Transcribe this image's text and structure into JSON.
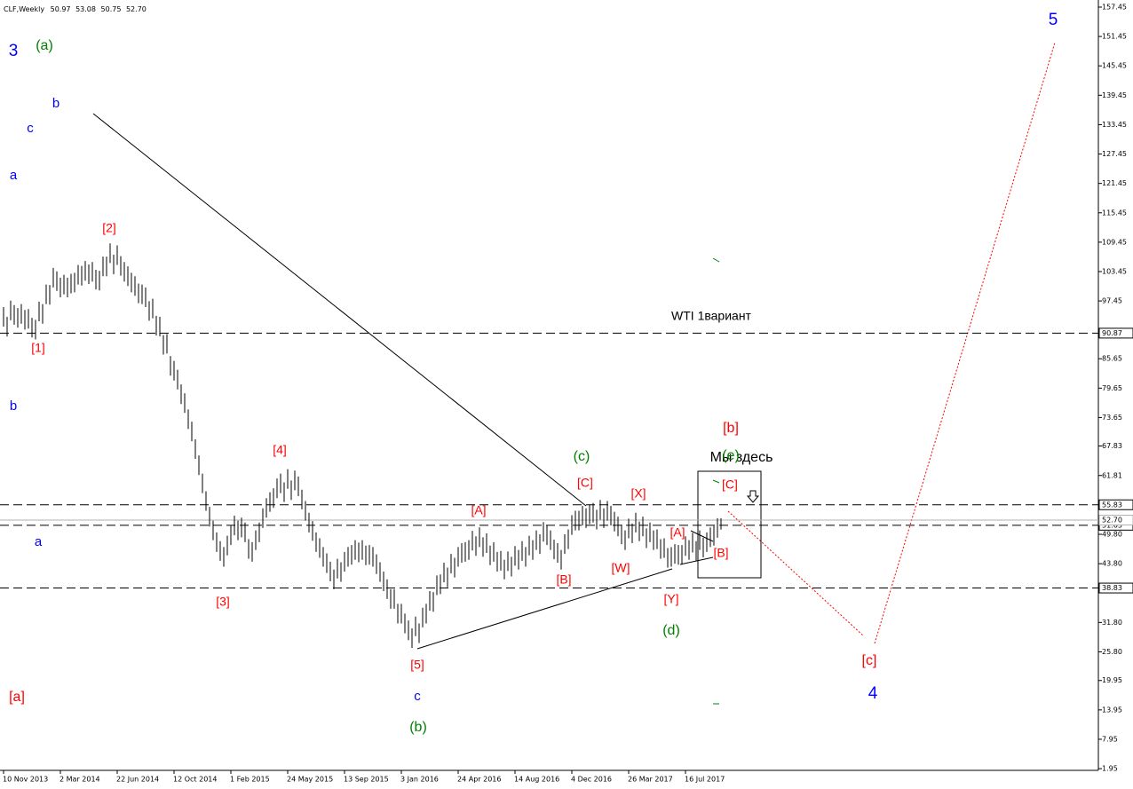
{
  "chart_data": {
    "type": "ohlc",
    "title": "CLF,Weekly",
    "last_ohlc": [
      50.97,
      53.08,
      50.75,
      {
        "value": 52.7,
        "label": "52.70"
      }
    ],
    "color": "#000000",
    "xticks": [
      "10 Nov 2013",
      "2 Mar 2014",
      "22 Jun 2014",
      "12 Oct 2014",
      "1 Feb 2015",
      "24 May 2015",
      "13 Sep 2015",
      "3 Jan 2016",
      "24 Apr 2016",
      "14 Aug 2016",
      "4 Dec 2016",
      "26 Mar 2017",
      "16 Jul 2017"
    ],
    "high": [
      96.2,
      94.2,
      97.5,
      96.6,
      96.0,
      96.8,
      95.6,
      95.8,
      94.0,
      93.6,
      97.3,
      96.8,
      100.8,
      100.7,
      104.2,
      103.5,
      102.2,
      102.8,
      102.2,
      103.0,
      103.2,
      104.8,
      104.6,
      105.6,
      104.9,
      105.4,
      103.8,
      103.6,
      106.5,
      106.5,
      109.2,
      106.9,
      108.8,
      106.6,
      105.4,
      104.5,
      103.2,
      102.5,
      101.0,
      100.8,
      100.2,
      97.4,
      97.9,
      94.4,
      94.2,
      90.5,
      90.7,
      86.2,
      85.2,
      83.4,
      80.4,
      78.6,
      75.3,
      72.8,
      69.2,
      65.9,
      62.2,
      58.6,
      55.4,
      52.6,
      50.2,
      48.4,
      47.2,
      49.5,
      51.6,
      53.6,
      52.6,
      53.2,
      52.2,
      48.8,
      48.2,
      50.6,
      52.2,
      55.1,
      57.2,
      58.4,
      59.2,
      61.2,
      62.2,
      60.4,
      63.1,
      60.8,
      62.8,
      61.6,
      58.9,
      56.6,
      54.2,
      52.5,
      50.2,
      49.0,
      47.2,
      45.9,
      44.2,
      42.6,
      44.8,
      44.1,
      46.2,
      47.2,
      47.6,
      48.6,
      48.1,
      48.6,
      47.5,
      47.6,
      47.2,
      45.7,
      44.1,
      42.2,
      40.6,
      38.6,
      38.6,
      35.6,
      35.6,
      33.6,
      32.2,
      30.6,
      33.0,
      31.6,
      34.8,
      35.6,
      38.2,
      38.0,
      41.4,
      41.6,
      44.0,
      43.0,
      45.8,
      45.0,
      47.2,
      48.0,
      48.2,
      48.6,
      50.5,
      49.4,
      51.2,
      49.2,
      50.0,
      47.5,
      48.2,
      46.2,
      46.4,
      44.6,
      46.3,
      45.2,
      47.4,
      46.6,
      48.4,
      47.2,
      49.5,
      48.6,
      50.6,
      49.8,
      52.3,
      51.6,
      50.6,
      48.7,
      48.0,
      46.6,
      49.8,
      50.8,
      53.7,
      54.6,
      54.6,
      55.6,
      55.1,
      55.9,
      56.2,
      54.8,
      56.8,
      55.1,
      56.6,
      55.6,
      54.4,
      53.4,
      51.8,
      50.6,
      53.0,
      52.0,
      54.2,
      52.4,
      53.4,
      51.0,
      52.2,
      50.6,
      50.8,
      48.8,
      49.0,
      47.0,
      47.2,
      47.8,
      47.6,
      47.6,
      49.4,
      48.6,
      50.1,
      48.4,
      50.6,
      49.1,
      50.2,
      51.2,
      51.5,
      53.1,
      53.08
    ],
    "low": [
      92.2,
      90.2,
      93.5,
      92.6,
      92.0,
      92.8,
      91.6,
      91.8,
      90.0,
      89.6,
      93.3,
      92.8,
      96.8,
      96.7,
      100.2,
      99.5,
      98.2,
      98.8,
      98.2,
      99.0,
      99.2,
      100.8,
      100.6,
      101.6,
      100.9,
      101.4,
      99.8,
      99.6,
      102.5,
      102.5,
      105.2,
      102.9,
      104.8,
      102.6,
      101.4,
      100.5,
      99.2,
      98.5,
      97.0,
      96.8,
      96.2,
      93.4,
      93.9,
      90.4,
      90.2,
      86.5,
      86.7,
      82.2,
      81.2,
      79.4,
      76.4,
      74.6,
      71.3,
      68.8,
      65.2,
      61.9,
      58.2,
      54.6,
      51.4,
      48.6,
      46.2,
      44.4,
      43.2,
      45.5,
      47.6,
      49.6,
      48.6,
      49.2,
      48.2,
      44.8,
      44.2,
      46.6,
      48.2,
      51.1,
      53.2,
      54.4,
      55.2,
      57.2,
      58.2,
      56.4,
      59.1,
      56.8,
      58.8,
      57.6,
      54.9,
      52.6,
      50.2,
      48.5,
      46.2,
      45.0,
      43.2,
      41.9,
      40.2,
      38.6,
      40.8,
      40.1,
      42.2,
      43.2,
      43.6,
      44.6,
      44.1,
      44.6,
      43.5,
      43.6,
      43.2,
      41.7,
      40.1,
      38.2,
      36.6,
      34.6,
      34.6,
      31.6,
      31.6,
      29.6,
      28.2,
      26.6,
      29.0,
      27.6,
      30.8,
      31.6,
      34.2,
      34.0,
      37.4,
      37.6,
      40.0,
      39.0,
      41.8,
      41.0,
      43.2,
      44.0,
      44.2,
      44.6,
      46.5,
      45.4,
      47.2,
      45.2,
      46.0,
      43.5,
      44.2,
      42.2,
      42.4,
      40.6,
      42.3,
      41.2,
      43.4,
      42.6,
      44.4,
      43.2,
      45.5,
      44.6,
      46.6,
      45.8,
      48.3,
      47.6,
      46.6,
      44.7,
      44.0,
      42.6,
      45.8,
      46.8,
      49.7,
      50.6,
      50.6,
      51.6,
      51.1,
      51.9,
      52.2,
      50.8,
      52.8,
      51.1,
      52.6,
      51.6,
      50.4,
      49.4,
      47.8,
      46.6,
      49.0,
      48.0,
      50.2,
      48.4,
      49.4,
      47.0,
      48.2,
      46.6,
      46.8,
      44.8,
      45.0,
      43.0,
      43.2,
      43.8,
      43.6,
      43.6,
      45.4,
      44.6,
      46.1,
      44.4,
      46.6,
      45.1,
      46.2,
      47.2,
      47.5,
      49.1,
      50.75
    ],
    "ylim": [
      1.6,
      158.9
    ],
    "yticks": [
      157.45,
      151.45,
      145.45,
      139.45,
      133.45,
      127.45,
      121.45,
      115.45,
      109.45,
      103.45,
      97.45,
      85.65,
      79.65,
      73.65,
      67.83,
      61.81,
      {
        "value": 49.8,
        "label": "49.80"
      },
      {
        "value": 43.8,
        "label": "43.80"
      },
      {
        "value": 31.8,
        "label": "31.80"
      },
      {
        "value": 25.8,
        "label": "25.80"
      },
      19.95,
      13.95,
      7.95,
      1.95
    ],
    "levels": [
      90.87,
      55.83,
      51.65,
      38.83
    ],
    "annotations": [
      {
        "text": "3",
        "color": "#0000ff"
      },
      {
        "text": "(a)",
        "color": "#008000"
      },
      {
        "text": "b",
        "color": "#0000ff"
      },
      {
        "text": "c",
        "color": "#0000ff"
      },
      {
        "text": "a",
        "color": "#0000ff"
      },
      {
        "text": "[2]",
        "color": "#ff0000"
      },
      {
        "text": "[1]",
        "color": "#ff0000"
      },
      {
        "text": "b",
        "color": "#0000ff"
      },
      {
        "text": "[4]",
        "color": "#ff0000"
      },
      {
        "text": "a",
        "color": "#0000ff"
      },
      {
        "text": "[3]",
        "color": "#ff0000"
      },
      {
        "text": "[5]",
        "color": "#ff0000"
      },
      {
        "text": "c",
        "color": "#0000ff"
      },
      {
        "text": "(b)",
        "color": "#008000"
      },
      {
        "text": "[a]",
        "color": "#ff0000"
      },
      {
        "text": "(c)",
        "color": "#008000"
      },
      {
        "text": "[C]",
        "color": "#ff0000"
      },
      {
        "text": "[X]",
        "color": "#ff0000"
      },
      {
        "text": "[A]",
        "color": "#ff0000"
      },
      {
        "text": "[B]",
        "color": "#ff0000"
      },
      {
        "text": "[W]",
        "color": "#ff0000"
      },
      {
        "text": "[Y]",
        "color": "#ff0000"
      },
      {
        "text": "(d)",
        "color": "#008000"
      },
      {
        "text": "[A]",
        "color": "#ff0000"
      },
      {
        "text": "[B]",
        "color": "#ff0000"
      },
      {
        "text": "[b]",
        "color": "#ff0000"
      },
      {
        "text": "Мы       здесь",
        "color": "#000000"
      },
      {
        "text": "(e)",
        "color": "#008000"
      },
      {
        "text": "[C]",
        "color": "#ff0000"
      },
      {
        "text": "[c]",
        "color": "#ff0000"
      },
      {
        "text": "4",
        "color": "#0000ff"
      },
      {
        "text": "5",
        "color": "#0000ff"
      },
      {
        "text": "WTI  1вариант",
        "color": "#000000"
      }
    ]
  }
}
